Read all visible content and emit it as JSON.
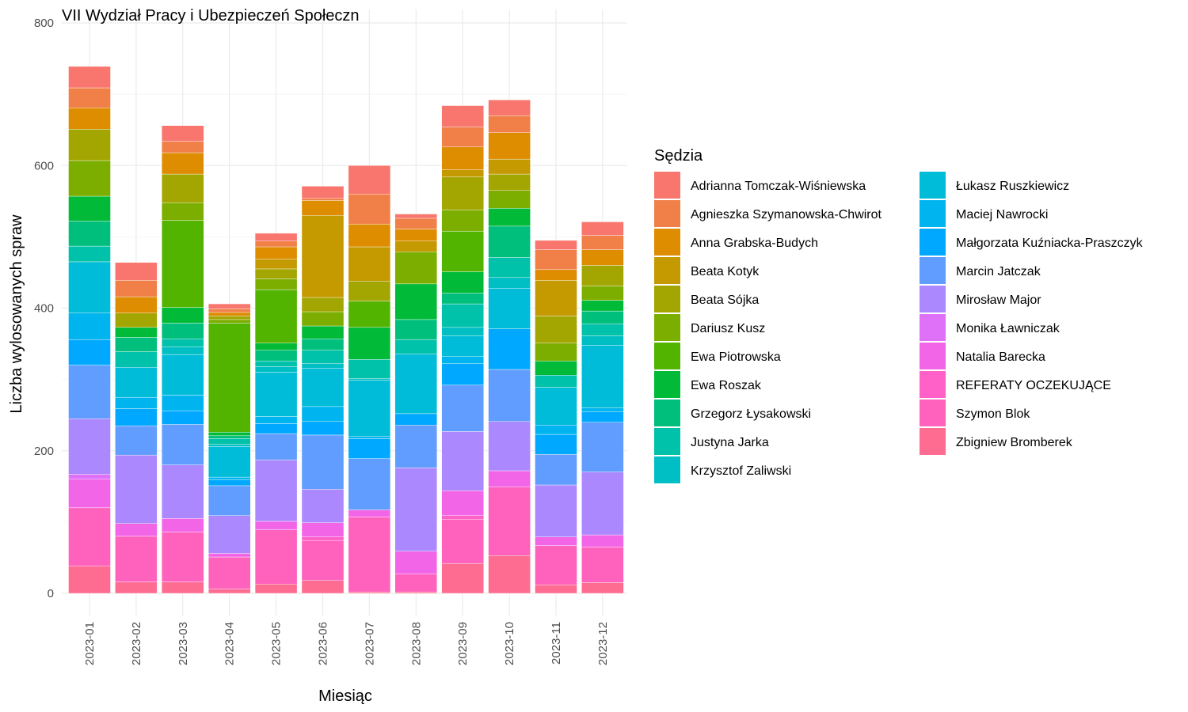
{
  "chart_data": {
    "type": "bar",
    "stacked": true,
    "title": "VII Wydział Pracy i Ubezpieczeń Społeczn",
    "xlabel": "Miesiąc",
    "ylabel": "Liczba wylosowanych spraw",
    "ylim": [
      0,
      800
    ],
    "yticks": [
      0,
      200,
      400,
      600,
      800
    ],
    "grid": true,
    "legend_title": "Sędzia",
    "legend_position": "right",
    "categories": [
      "2023-01",
      "2023-02",
      "2023-03",
      "2023-04",
      "2023-05",
      "2023-06",
      "2023-07",
      "2023-08",
      "2023-09",
      "2023-10",
      "2023-11",
      "2023-12"
    ],
    "series": [
      {
        "name": "Zbigniew Bromberek",
        "color": "#FF6C91",
        "values": [
          38,
          16,
          16,
          6,
          13,
          18,
          2,
          2,
          42,
          53,
          12,
          15
        ]
      },
      {
        "name": "Szymon Blok",
        "color": "#FF62BC",
        "values": [
          82,
          64,
          70,
          45,
          76,
          56,
          105,
          25,
          62,
          96,
          55,
          50
        ]
      },
      {
        "name": "REFERATY OCZEKUJĄCE",
        "color": "#FF61C9",
        "values": [
          0,
          0,
          0,
          0,
          0,
          5,
          0,
          0,
          5,
          0,
          0,
          0
        ]
      },
      {
        "name": "Natalia Barecka",
        "color": "#F265E7",
        "values": [
          40,
          18,
          19,
          5,
          12,
          20,
          10,
          32,
          35,
          23,
          12,
          17
        ]
      },
      {
        "name": "Monika Ławniczak",
        "color": "#DF70F8",
        "values": [
          7,
          0,
          0,
          0,
          0,
          0,
          0,
          0,
          0,
          0,
          0,
          0
        ]
      },
      {
        "name": "Mirosław Major",
        "color": "#AC88FF",
        "values": [
          78,
          96,
          75,
          53,
          86,
          47,
          0,
          117,
          83,
          69,
          73,
          88
        ]
      },
      {
        "name": "Marcin Jatczak",
        "color": "#619CFF",
        "values": [
          75,
          41,
          57,
          42,
          37,
          76,
          72,
          60,
          65,
          73,
          43,
          70
        ]
      },
      {
        "name": "Małgorzata Kuźniacka-Praszczyk",
        "color": "#00A9FF",
        "values": [
          36,
          24,
          19,
          8,
          14,
          19,
          28,
          16,
          30,
          57,
          28,
          15
        ]
      },
      {
        "name": "Maciej Nawrocki",
        "color": "#00B4EF",
        "values": [
          37,
          16,
          22,
          4,
          10,
          21,
          3,
          0,
          10,
          0,
          13,
          5
        ]
      },
      {
        "name": "Łukasz Ruszkiewicz",
        "color": "#00BCD8",
        "values": [
          72,
          42,
          57,
          43,
          62,
          54,
          79,
          84,
          29,
          57,
          53,
          88
        ]
      },
      {
        "name": "Krzysztof Zaliwski",
        "color": "#00BFC4",
        "values": [
          0,
          0,
          11,
          3,
          8,
          6,
          2,
          0,
          12,
          15,
          0,
          13
        ]
      },
      {
        "name": "Justyna Jarka",
        "color": "#00C1A9",
        "values": [
          22,
          22,
          11,
          8,
          8,
          19,
          27,
          20,
          33,
          28,
          17,
          17
        ]
      },
      {
        "name": "Grzegorz Łysakowski",
        "color": "#00BF7D",
        "values": [
          35,
          20,
          22,
          4,
          15,
          16,
          0,
          28,
          15,
          44,
          0,
          18
        ]
      },
      {
        "name": "Ewa Roszak",
        "color": "#00BA38",
        "values": [
          35,
          14,
          22,
          5,
          10,
          18,
          45,
          50,
          30,
          25,
          20,
          15
        ]
      },
      {
        "name": "Ewa Piotrowska",
        "color": "#53B400",
        "values": [
          0,
          0,
          122,
          153,
          75,
          0,
          37,
          0,
          57,
          0,
          0,
          0
        ]
      },
      {
        "name": "Dariusz Kusz",
        "color": "#7CAE00",
        "values": [
          50,
          0,
          25,
          5,
          15,
          20,
          0,
          45,
          30,
          25,
          25,
          20
        ]
      },
      {
        "name": "Beata Sójka",
        "color": "#A3A500",
        "values": [
          44,
          20,
          40,
          5,
          14,
          20,
          28,
          0,
          46,
          23,
          38,
          29
        ]
      },
      {
        "name": "Beata Kotyk",
        "color": "#C49A00",
        "values": [
          0,
          0,
          0,
          0,
          14,
          115,
          48,
          15,
          10,
          21,
          50,
          0
        ]
      },
      {
        "name": "Anna Grabska-Budych",
        "color": "#DE8C00",
        "values": [
          30,
          23,
          30,
          5,
          17,
          21,
          32,
          17,
          32,
          37,
          15,
          22
        ]
      },
      {
        "name": "Agnieszka Szymanowska-Chwirot",
        "color": "#F07F48",
        "values": [
          28,
          23,
          16,
          5,
          8,
          3,
          42,
          15,
          28,
          24,
          28,
          20
        ]
      },
      {
        "name": "Adrianna Tomczak-Wiśniewska",
        "color": "#F8766D",
        "values": [
          30,
          25,
          22,
          7,
          11,
          17,
          40,
          6,
          30,
          22,
          13,
          19
        ]
      }
    ],
    "legend_order": [
      "Adrianna Tomczak-Wiśniewska",
      "Agnieszka Szymanowska-Chwirot",
      "Anna Grabska-Budych",
      "Beata Kotyk",
      "Beata Sójka",
      "Dariusz Kusz",
      "Ewa Piotrowska",
      "Ewa Roszak",
      "Grzegorz Łysakowski",
      "Justyna Jarka",
      "Krzysztof Zaliwski",
      "Łukasz Ruszkiewicz",
      "Maciej Nawrocki",
      "Małgorzata Kuźniacka-Praszczyk",
      "Marcin Jatczak",
      "Mirosław Major",
      "Monika Ławniczak",
      "Natalia Barecka",
      "REFERATY OCZEKUJĄCE",
      "Szymon Blok",
      "Zbigniew Bromberek"
    ]
  }
}
